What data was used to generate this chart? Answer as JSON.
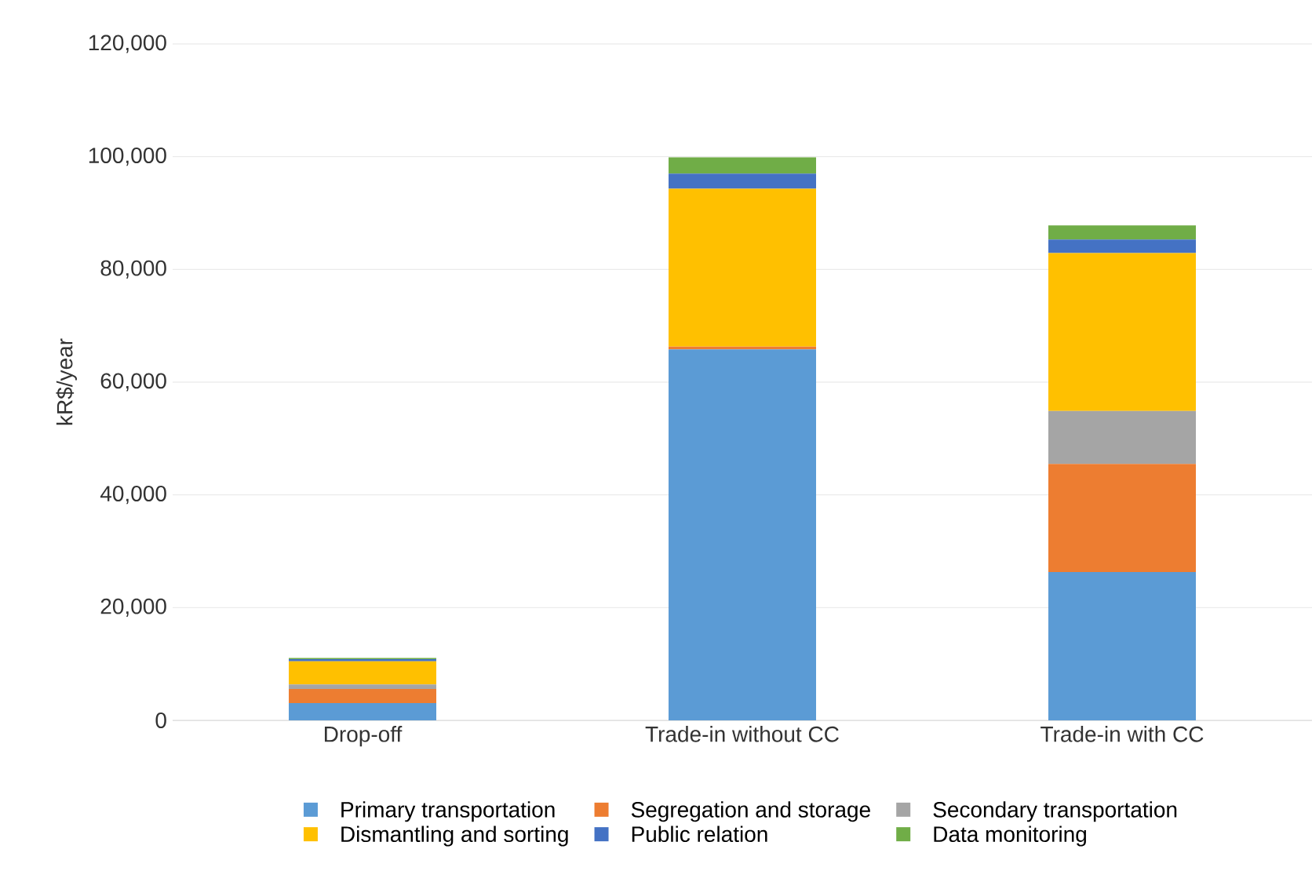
{
  "chart_data": {
    "type": "bar",
    "stacked": true,
    "ylabel": "kR$/year",
    "categories": [
      "Drop-off",
      "Trade-in without CC",
      "Trade-in with CC"
    ],
    "series": [
      {
        "name": "Primary transportation",
        "color": "#5b9bd5",
        "values": [
          3060.0,
          65800.0,
          26300.0
        ]
      },
      {
        "name": "Segregation and storage",
        "color": "#ed7d31",
        "values": [
          2500.0,
          500.0,
          19200.0
        ]
      },
      {
        "name": "Secondary transportation",
        "color": "#a5a5a5",
        "values": [
          800.0,
          0,
          9400.0
        ]
      },
      {
        "name": "Dismantling and sorting",
        "color": "#ffc000",
        "values": [
          4100.0,
          28000.0,
          28000.0
        ]
      },
      {
        "name": "Public relation",
        "color": "#4472c4",
        "values": [
          400.0,
          2700.0,
          2400.0
        ]
      },
      {
        "name": "Data monitoring",
        "color": "#70ad47",
        "values": [
          200.0,
          2900.0,
          2500.0
        ]
      }
    ],
    "ylim": [
      0,
      120000
    ],
    "yticks": [
      {
        "value": 0,
        "label": "0"
      },
      {
        "value": 20000,
        "label": "20,000"
      },
      {
        "value": 40000,
        "label": "40,000"
      },
      {
        "value": 60000,
        "label": "60,000"
      },
      {
        "value": 80000,
        "label": "80,000"
      },
      {
        "value": 100000,
        "label": "100,000"
      },
      {
        "value": 120000,
        "label": "120,000"
      }
    ],
    "grid": "y",
    "legend": "bottom"
  }
}
